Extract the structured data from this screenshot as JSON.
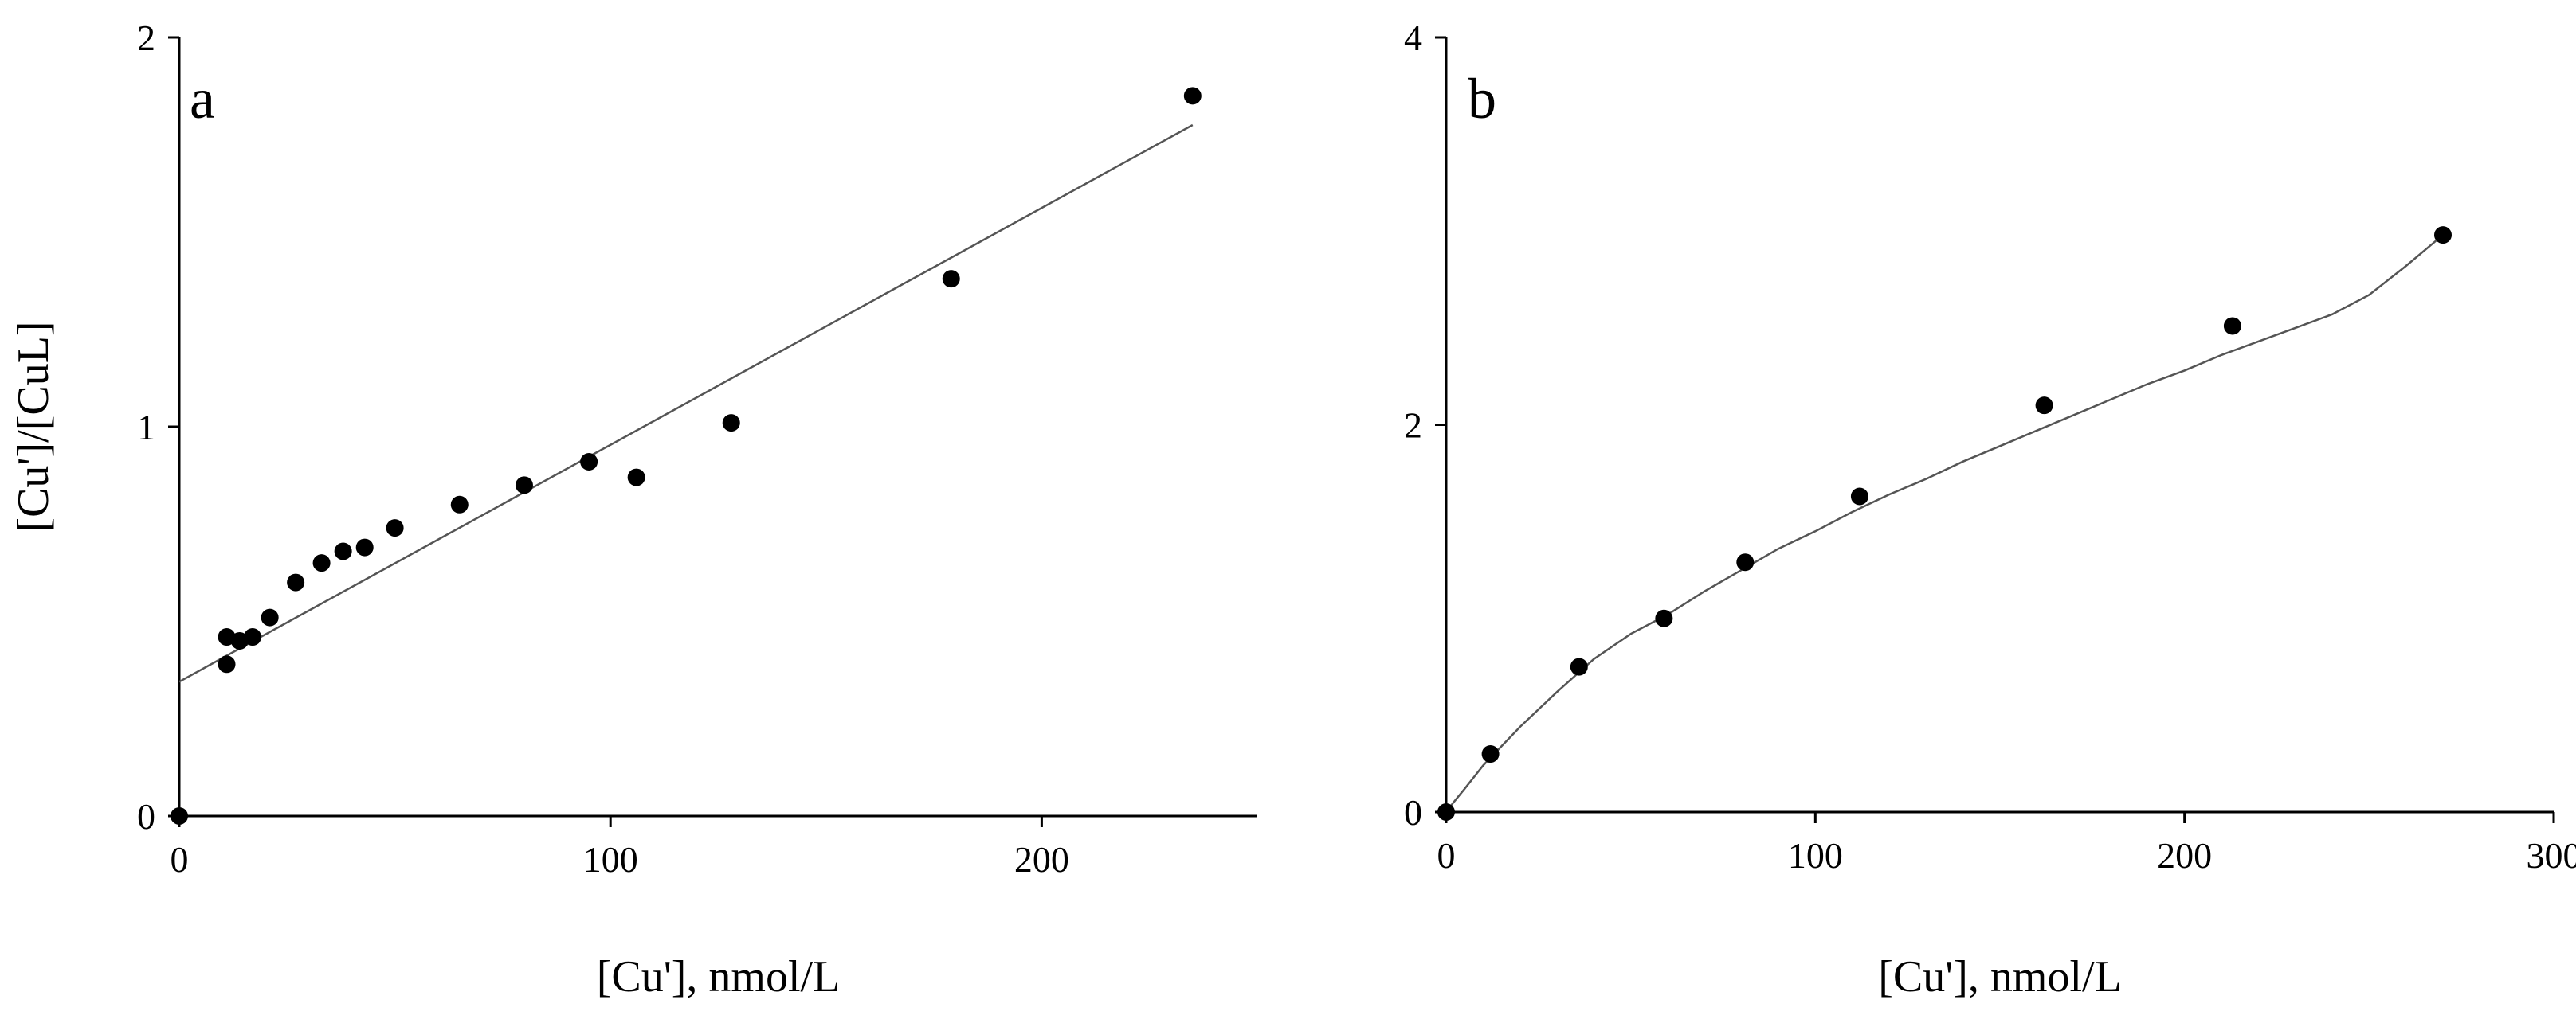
{
  "chart_data": [
    {
      "type": "scatter",
      "panel_label": "a",
      "xlabel": "[Cu'], nmol/L",
      "ylabel": "[Cu']/[CuL]",
      "xlim": [
        0,
        250
      ],
      "ylim": [
        0,
        2
      ],
      "xticks": [
        0,
        100,
        200
      ],
      "yticks": [
        0,
        1,
        2
      ],
      "grid": false,
      "series": [
        {
          "mode": "markers",
          "x": [
            0,
            11,
            11,
            14,
            17,
            21,
            27,
            33,
            38,
            43,
            50,
            65,
            80,
            95,
            106,
            128,
            179,
            235
          ],
          "y": [
            0,
            0.46,
            0.39,
            0.45,
            0.46,
            0.51,
            0.6,
            0.65,
            0.68,
            0.69,
            0.74,
            0.8,
            0.85,
            0.91,
            0.87,
            1.01,
            1.38,
            1.85
          ]
        },
        {
          "mode": "line",
          "fit": "linear",
          "x": [
            0,
            235
          ],
          "y": [
            0.345,
            1.775
          ]
        }
      ]
    },
    {
      "type": "scatter",
      "panel_label": "b",
      "xlabel": "[Cu'], nmol/L",
      "ylabel": "",
      "xlim": [
        0,
        300
      ],
      "ylim": [
        0,
        4
      ],
      "xticks": [
        0,
        100,
        200,
        300
      ],
      "yticks": [
        0,
        2,
        4
      ],
      "grid": false,
      "series": [
        {
          "mode": "markers",
          "x": [
            0,
            12,
            36,
            59,
            81,
            112,
            162,
            213,
            270
          ],
          "y": [
            0,
            0.3,
            0.75,
            1.0,
            1.29,
            1.63,
            2.1,
            2.51,
            2.98
          ]
        },
        {
          "mode": "line",
          "fit": "curve",
          "x": [
            0,
            2,
            5,
            10,
            15,
            20,
            30,
            40,
            50,
            60,
            70,
            80,
            90,
            100,
            110,
            120,
            130,
            140,
            150,
            160,
            170,
            180,
            190,
            200,
            210,
            220,
            230,
            240,
            250,
            260,
            270
          ],
          "y": [
            0,
            0.05,
            0.12,
            0.24,
            0.34,
            0.44,
            0.62,
            0.79,
            0.92,
            1.02,
            1.14,
            1.25,
            1.36,
            1.45,
            1.55,
            1.64,
            1.72,
            1.81,
            1.89,
            1.97,
            2.05,
            2.13,
            2.21,
            2.28,
            2.36,
            2.43,
            2.5,
            2.57,
            2.67,
            2.82,
            2.98
          ]
        }
      ]
    }
  ]
}
